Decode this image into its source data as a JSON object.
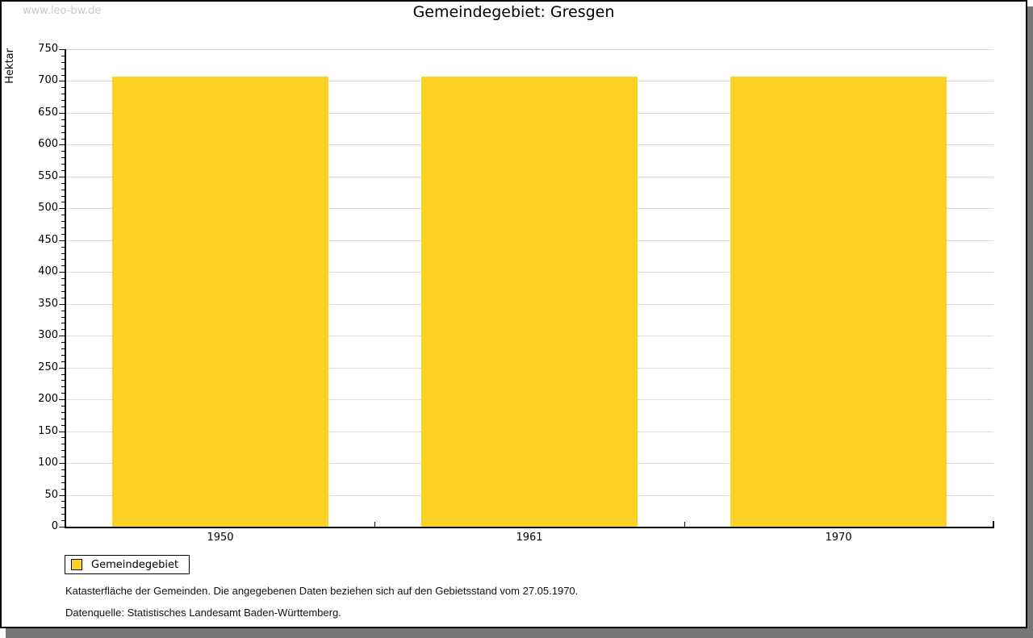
{
  "watermark": "www.leo-bw.de",
  "header": {
    "title": "Gemeindegebiet: Gresgen"
  },
  "y_axis": {
    "label": "Hektar"
  },
  "legend": {
    "label": "Gemeindegebiet"
  },
  "notes": {
    "footnote": "Katasterfläche der Gemeinden. Die angegebenen Daten beziehen sich auf den Gebietsstand vom 27.05.1970.",
    "source": "Datenquelle: Statistisches Landesamt Baden-Württemberg."
  },
  "colors": {
    "bar": "#fcd225",
    "grid": "#dcdcdc",
    "axis": "#000000",
    "shadow": "#757575",
    "watermark_text": "#c9c9c9"
  },
  "chart_data": {
    "type": "bar",
    "title": "Gemeindegebiet: Gresgen",
    "categories": [
      "1950",
      "1961",
      "1970"
    ],
    "series": [
      {
        "name": "Gemeindegebiet",
        "values": [
          707,
          707,
          707
        ],
        "color": "#fcd225"
      }
    ],
    "xlabel": "",
    "ylabel": "Hektar",
    "ylim": [
      0,
      750
    ],
    "y_major_step": 50,
    "y_minor_step": 10,
    "y_tick_labels": [
      "0",
      "50",
      "100",
      "150",
      "200",
      "250",
      "300",
      "350",
      "400",
      "450",
      "500",
      "550",
      "600",
      "650",
      "700",
      "750"
    ],
    "grid": true,
    "legend_position": "bottom-left"
  }
}
